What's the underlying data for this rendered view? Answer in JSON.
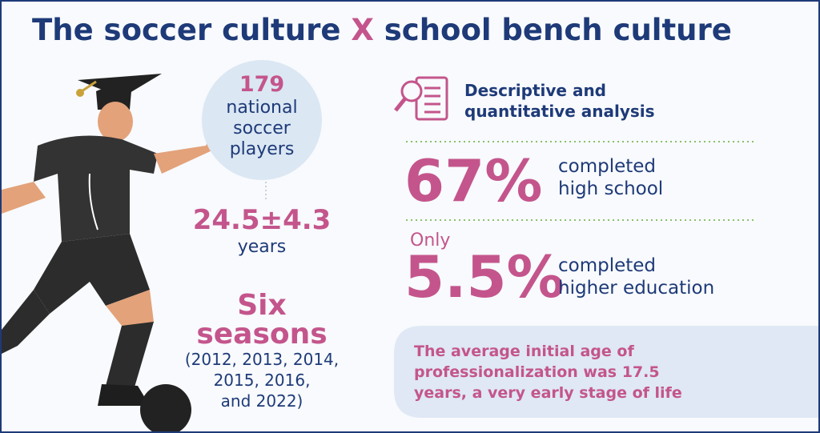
{
  "header": {
    "title_start": "The soccer culture",
    "title_x": "X",
    "title_end": "school bench culture"
  },
  "sample": {
    "count": "179",
    "label_lines": [
      "national",
      "soccer",
      "players"
    ]
  },
  "age": {
    "value": "24.5±4.3",
    "unit": "years"
  },
  "seasons": {
    "title_lines": [
      "Six",
      "seasons"
    ],
    "list_lines": [
      "(2012, 2013, 2014,",
      "2015, 2016,",
      "and 2022)"
    ]
  },
  "method": {
    "lines": [
      "Descriptive and",
      "quantitative analysis"
    ]
  },
  "high_school": {
    "value": "67%",
    "lines": [
      "completed",
      "high school"
    ]
  },
  "higher_education": {
    "prefix": "Only",
    "value": "5.5%",
    "lines": [
      "completed",
      "higher education"
    ]
  },
  "note": {
    "lines": [
      "The average initial age of",
      "professionalization was 17.5",
      "years, a very early stage of life"
    ]
  }
}
